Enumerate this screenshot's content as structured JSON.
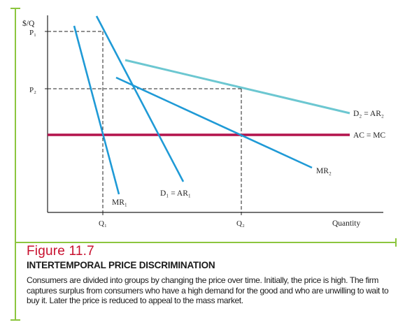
{
  "figure": {
    "number_prefix": "Figure",
    "number": "11.7",
    "heading": "INTERTEMPORAL PRICE DISCRIMINATION",
    "caption": "Consumers are divided into groups by changing the price over time. Initially, the price is high. The firm captures surplus from consumers who have a high demand for the good and who are unwilling to wait to buy it. Later the price is reduced to appeal to the mass market."
  },
  "axes": {
    "y_label": "$/Q",
    "x_label": "Quantity",
    "y_ticks": [
      "P₁",
      "P₂"
    ],
    "x_ticks": [
      "Q₁",
      "Q₂"
    ]
  },
  "curve_labels": {
    "d2": "D₂ = AR₂",
    "ac": "AC = MC",
    "mr2": "MR₂",
    "d1": "D₁ = AR₁",
    "mr1": "MR₁"
  },
  "colors": {
    "demand_1": "#1f9ad6",
    "demand_2": "#6cc7d1",
    "cost": "#b3124c",
    "accent": "#c8102e",
    "frame_accent": "#8cc63f",
    "axis": "#222222"
  }
}
